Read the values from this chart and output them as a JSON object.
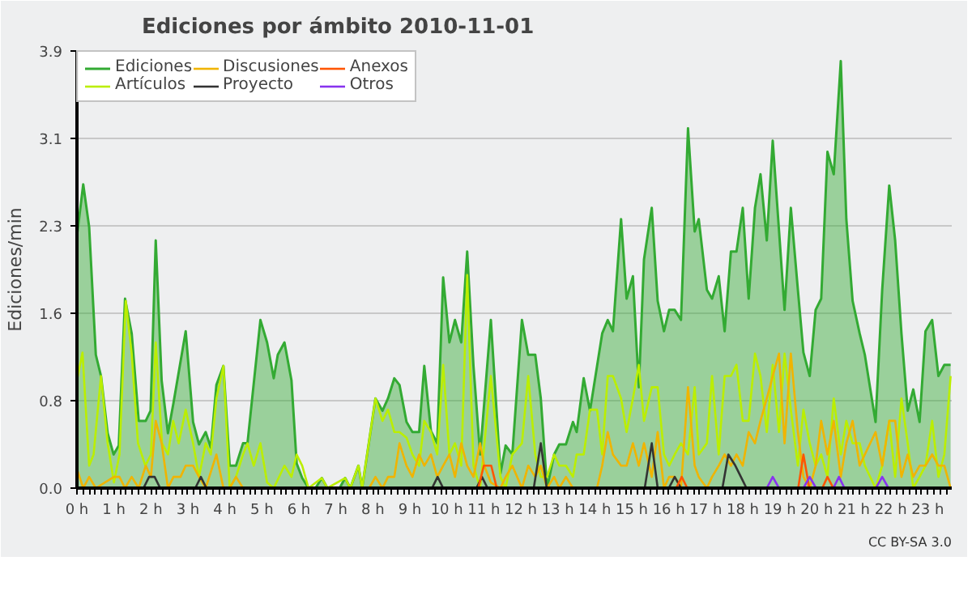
{
  "chart_data": {
    "type": "area",
    "title": "Ediciones por ámbito  2010-11-01",
    "ylabel": "Ediciones/min",
    "xlim": [
      0,
      23.65
    ],
    "ylim": [
      0,
      3.9
    ],
    "xticks": [
      {
        "value": 0,
        "label": "0 h"
      },
      {
        "value": 1,
        "label": "1 h"
      },
      {
        "value": 2,
        "label": "2 h"
      },
      {
        "value": 3,
        "label": "3 h"
      },
      {
        "value": 4,
        "label": "4 h"
      },
      {
        "value": 5,
        "label": "5 h"
      },
      {
        "value": 6,
        "label": "6 h"
      },
      {
        "value": 7,
        "label": "7 h"
      },
      {
        "value": 8,
        "label": "8 h"
      },
      {
        "value": 9,
        "label": "9 h"
      },
      {
        "value": 10,
        "label": "10 h"
      },
      {
        "value": 11,
        "label": "11 h"
      },
      {
        "value": 12,
        "label": "12 h"
      },
      {
        "value": 13,
        "label": "13 h"
      },
      {
        "value": 14,
        "label": "14 h"
      },
      {
        "value": 15,
        "label": "15 h"
      },
      {
        "value": 16,
        "label": "16 h"
      },
      {
        "value": 17,
        "label": "17 h"
      },
      {
        "value": 18,
        "label": "18 h"
      },
      {
        "value": 19,
        "label": "19 h"
      },
      {
        "value": 20,
        "label": "20 h"
      },
      {
        "value": 21,
        "label": "21 h"
      },
      {
        "value": 22,
        "label": "22 h"
      },
      {
        "value": 23,
        "label": "23 h"
      }
    ],
    "yticks": [
      {
        "value": 0,
        "label": "0.0"
      },
      {
        "value": 0.78,
        "label": "0.8"
      },
      {
        "value": 1.56,
        "label": "1.6"
      },
      {
        "value": 2.34,
        "label": "2.3"
      },
      {
        "value": 3.12,
        "label": "3.1"
      },
      3.9
    ],
    "grid": "y",
    "legend": "top left",
    "annotations": [
      "CC BY-SA 3.0"
    ],
    "series": [
      {
        "name": "Ediciones",
        "color": "#33aa33",
        "x": [
          0,
          0.17,
          0.33,
          0.51,
          0.65,
          0.83,
          0.99,
          1.13,
          1.3,
          1.48,
          1.67,
          1.86,
          1.99,
          2.13,
          2.29,
          2.46,
          2.61,
          2.94,
          3.14,
          3.3,
          3.48,
          3.62,
          3.77,
          3.96,
          4.13,
          4.3,
          4.49,
          4.61,
          4.96,
          5.14,
          5.32,
          5.43,
          5.61,
          5.8,
          5.94,
          6.09,
          6.26,
          6.45,
          6.62,
          6.77,
          7.1,
          7.25,
          7.39,
          7.61,
          7.71,
          8.07,
          8.26,
          8.41,
          8.58,
          8.72,
          8.91,
          9.07,
          9.25,
          9.39,
          9.57,
          9.74,
          9.9,
          10.07,
          10.22,
          10.39,
          10.55,
          10.72,
          10.9,
          11.19,
          11.45,
          11.59,
          11.77,
          12.03,
          12.2,
          12.39,
          12.54,
          12.71,
          12.9,
          13.04,
          13.22,
          13.41,
          13.51,
          13.7,
          13.87,
          14.2,
          14.35,
          14.49,
          14.71,
          14.86,
          15.03,
          15.19,
          15.33,
          15.54,
          15.7,
          15.87,
          16.01,
          16.16,
          16.33,
          16.52,
          16.7,
          16.81,
          17.03,
          17.17,
          17.35,
          17.51,
          17.68,
          17.83,
          18.0,
          18.16,
          18.33,
          18.48,
          18.65,
          18.81,
          19.13,
          19.3,
          19.49,
          19.64,
          19.81,
          19.97,
          20.12,
          20.29,
          20.46,
          20.65,
          20.8,
          20.97,
          21.16,
          21.3,
          21.59,
          21.77,
          21.96,
          22.12,
          22.29,
          22.46,
          22.61,
          22.78,
          22.94,
          23.12,
          23.29,
          23.45,
          23.62
        ],
        "values": [
          2.25,
          2.71,
          2.33,
          1.19,
          1.0,
          0.49,
          0.3,
          0.38,
          1.69,
          1.38,
          0.6,
          0.6,
          0.69,
          2.21,
          0.96,
          0.49,
          0.76,
          1.4,
          0.59,
          0.39,
          0.5,
          0.36,
          0.92,
          1.09,
          0.2,
          0.2,
          0.4,
          0.4,
          1.5,
          1.3,
          0.98,
          1.19,
          1.3,
          0.96,
          0.22,
          0.09,
          0,
          0,
          0.09,
          0,
          0,
          0.09,
          0,
          0.2,
          0,
          0.8,
          0.69,
          0.8,
          0.98,
          0.92,
          0.59,
          0.5,
          0.5,
          1.09,
          0.51,
          0.4,
          1.88,
          1.3,
          1.5,
          1.3,
          2.11,
          1.09,
          0.3,
          1.5,
          0.13,
          0.38,
          0.3,
          1.5,
          1.19,
          1.19,
          0.8,
          0,
          0.3,
          0.39,
          0.39,
          0.59,
          0.5,
          0.98,
          0.69,
          1.38,
          1.5,
          1.4,
          2.4,
          1.69,
          1.89,
          0.9,
          2.04,
          2.5,
          1.67,
          1.4,
          1.59,
          1.59,
          1.5,
          3.21,
          2.29,
          2.4,
          1.77,
          1.69,
          1.89,
          1.4,
          2.11,
          2.11,
          2.5,
          1.69,
          2.5,
          2.8,
          2.21,
          3.1,
          1.59,
          2.5,
          1.77,
          1.21,
          1.0,
          1.59,
          1.69,
          3.0,
          2.8,
          3.81,
          2.4,
          1.67,
          1.38,
          1.19,
          0.59,
          1.77,
          2.7,
          2.21,
          1.38,
          0.69,
          0.88,
          0.59,
          1.4,
          1.5,
          1.0,
          1.1,
          1.1
        ]
      },
      {
        "name": "Artículos",
        "type": "line",
        "color": "#bbee00",
        "x": [
          0,
          0.15,
          0.33,
          0.45,
          0.65,
          0.83,
          1.0,
          1.15,
          1.32,
          1.48,
          1.65,
          1.85,
          2.0,
          2.13,
          2.3,
          2.46,
          2.6,
          2.75,
          2.94,
          3.14,
          3.3,
          3.48,
          3.62,
          3.77,
          3.96,
          4.13,
          4.3,
          4.49,
          4.61,
          4.78,
          4.96,
          5.14,
          5.32,
          5.61,
          5.8,
          5.94,
          6.09,
          6.26,
          6.62,
          6.77,
          7.25,
          7.39,
          7.61,
          7.71,
          8.07,
          8.26,
          8.41,
          8.58,
          8.72,
          8.91,
          9.07,
          9.25,
          9.39,
          9.57,
          9.74,
          9.9,
          10.07,
          10.22,
          10.39,
          10.55,
          10.72,
          10.9,
          11.19,
          11.45,
          11.59,
          11.77,
          12.03,
          12.2,
          12.39,
          12.54,
          12.71,
          12.9,
          13.04,
          13.22,
          13.41,
          13.51,
          13.7,
          13.87,
          14.06,
          14.2,
          14.35,
          14.49,
          14.71,
          14.86,
          15.03,
          15.19,
          15.33,
          15.54,
          15.7,
          15.87,
          16.01,
          16.16,
          16.33,
          16.52,
          16.7,
          16.81,
          17.03,
          17.17,
          17.35,
          17.51,
          17.68,
          17.83,
          18.0,
          18.16,
          18.33,
          18.48,
          18.65,
          18.81,
          18.98,
          19.13,
          19.3,
          19.49,
          19.64,
          19.81,
          19.97,
          20.12,
          20.29,
          20.46,
          20.65,
          20.8,
          20.97,
          21.16,
          21.3,
          21.59,
          21.77,
          21.96,
          22.12,
          22.29,
          22.46,
          22.61,
          22.78,
          22.94,
          23.12,
          23.29,
          23.45,
          23.62
        ],
        "values": [
          0.96,
          1.21,
          0.2,
          0.3,
          1.0,
          0.4,
          0.05,
          0.3,
          1.67,
          1.2,
          0.4,
          0.2,
          0.3,
          1.3,
          0.4,
          0.3,
          0.6,
          0.4,
          0.7,
          0.4,
          0.1,
          0.4,
          0.3,
          0.8,
          1.09,
          0,
          0.1,
          0.3,
          0.4,
          0.2,
          0.4,
          0.05,
          0,
          0.2,
          0.1,
          0.3,
          0.2,
          0,
          0.09,
          0,
          0.09,
          0,
          0.2,
          0,
          0.8,
          0.6,
          0.7,
          0.5,
          0.5,
          0.45,
          0.3,
          0.2,
          0.6,
          0.5,
          0.3,
          1.1,
          0.3,
          0.4,
          0.2,
          1.9,
          0.2,
          0,
          1.0,
          0.1,
          0,
          0.3,
          0.4,
          1.0,
          0.3,
          0.1,
          0.1,
          0.3,
          0.2,
          0.2,
          0.1,
          0.3,
          0.3,
          0.7,
          0.7,
          0.3,
          1.0,
          1.0,
          0.8,
          0.5,
          0.8,
          1.1,
          0.6,
          0.9,
          0.9,
          0.3,
          0.2,
          0.3,
          0.4,
          0.3,
          0.9,
          0.3,
          0.4,
          1.0,
          0.3,
          1.0,
          1.0,
          1.1,
          0.6,
          0.6,
          1.2,
          1.0,
          0.5,
          1.1,
          0.5,
          1.2,
          0.7,
          0.2,
          0.7,
          0.4,
          0.2,
          0.3,
          0.1,
          0.8,
          0.3,
          0.6,
          0.4,
          0.4,
          0.2,
          0,
          0.2,
          0.6,
          0.1,
          0.8,
          0.4,
          0,
          0.1,
          0.2,
          0.6,
          0.1,
          0.3,
          1.0
        ]
      },
      {
        "name": "Discusiones",
        "type": "line",
        "color": "#f0b400",
        "x": [
          0,
          0.17,
          0.33,
          0.51,
          1.0,
          1.15,
          1.3,
          1.48,
          1.67,
          1.86,
          2.0,
          2.13,
          2.29,
          2.46,
          2.61,
          2.8,
          2.94,
          3.14,
          3.3,
          3.48,
          3.77,
          3.96,
          4.13,
          4.3,
          4.49,
          7.9,
          8.07,
          8.26,
          8.41,
          8.58,
          8.72,
          8.91,
          9.07,
          9.25,
          9.39,
          9.57,
          9.74,
          9.9,
          10.07,
          10.22,
          10.39,
          10.55,
          10.72,
          10.9,
          11.01,
          11.19,
          11.45,
          11.59,
          11.77,
          12.03,
          12.2,
          12.39,
          12.54,
          12.71,
          12.9,
          13.04,
          13.22,
          13.41,
          14.06,
          14.2,
          14.35,
          14.49,
          14.71,
          14.86,
          15.03,
          15.19,
          15.33,
          15.54,
          15.7,
          15.87,
          16.01,
          16.16,
          16.33,
          16.52,
          16.7,
          16.81,
          17.03,
          17.17,
          17.35,
          17.51,
          17.68,
          17.83,
          18.0,
          18.16,
          18.33,
          18.48,
          18.65,
          18.81,
          18.98,
          19.13,
          19.3,
          19.49,
          19.64,
          19.81,
          19.97,
          20.12,
          20.29,
          20.46,
          20.65,
          20.8,
          20.97,
          21.16,
          21.3,
          21.59,
          21.77,
          21.96,
          22.12,
          22.29,
          22.46,
          22.61,
          22.78,
          22.94,
          23.12,
          23.29,
          23.45,
          23.62
        ],
        "values": [
          0.17,
          0,
          0.1,
          0,
          0.1,
          0.1,
          0,
          0.1,
          0,
          0.2,
          0.1,
          0.6,
          0.4,
          0,
          0.1,
          0.1,
          0.2,
          0.2,
          0.1,
          0,
          0.3,
          0,
          0,
          0.1,
          0,
          0,
          0.1,
          0,
          0.1,
          0.1,
          0.4,
          0.2,
          0.1,
          0.3,
          0.2,
          0.3,
          0.1,
          0.2,
          0.3,
          0.1,
          0.4,
          0.2,
          0.1,
          0.4,
          0.2,
          0.05,
          0,
          0.1,
          0.2,
          0,
          0.2,
          0.1,
          0.2,
          0,
          0.1,
          0,
          0.1,
          0,
          0,
          0.2,
          0.5,
          0.3,
          0.2,
          0.2,
          0.4,
          0.2,
          0.4,
          0.1,
          0.5,
          0,
          0.1,
          0.1,
          0,
          0.9,
          0.2,
          0.1,
          0,
          0.1,
          0.2,
          0.3,
          0.2,
          0.3,
          0.2,
          0.5,
          0.4,
          0.6,
          0.8,
          1.0,
          1.2,
          0.4,
          1.2,
          0.5,
          0.1,
          0,
          0.2,
          0.6,
          0.3,
          0.6,
          0.1,
          0.4,
          0.6,
          0.2,
          0.3,
          0.5,
          0.2,
          0.6,
          0.6,
          0.1,
          0.3,
          0.1,
          0.2,
          0.2,
          0.3,
          0.2,
          0.2,
          0
        ]
      },
      {
        "name": "Proyecto",
        "type": "line",
        "color": "#333333",
        "x": [
          1.8,
          1.95,
          2.1,
          2.25,
          2.3,
          3.2,
          3.35,
          3.5,
          3.6,
          9.6,
          9.75,
          9.9,
          10.0,
          10.8,
          10.95,
          11.1,
          11.2,
          12.35,
          12.54,
          12.7,
          12.8,
          15.35,
          15.54,
          15.7,
          15.8,
          16.0,
          16.16,
          16.33,
          16.4,
          17.45,
          17.61,
          17.8,
          17.95,
          18.1
        ],
        "values": [
          0,
          0.1,
          0.1,
          0,
          null,
          0,
          0.1,
          0,
          null,
          0,
          0.1,
          0,
          null,
          0,
          0.1,
          0,
          null,
          0,
          0.4,
          0,
          null,
          0,
          0.4,
          0,
          null,
          0,
          0.1,
          0,
          null,
          0,
          0.3,
          0.2,
          0.1,
          0
        ]
      },
      {
        "name": "Anexos",
        "type": "line",
        "color": "#ff5500",
        "x": [
          10.85,
          11.0,
          11.2,
          11.35,
          11.4,
          16.2,
          16.35,
          16.5,
          16.6,
          19.5,
          19.64,
          19.8,
          19.9,
          20.15,
          20.29,
          20.45
        ],
        "values": [
          0,
          0.2,
          0.2,
          0,
          null,
          0,
          0.1,
          0,
          null,
          0,
          0.3,
          0,
          null,
          0,
          0.1,
          0
        ]
      },
      {
        "name": "Otros",
        "type": "line",
        "color": "#8833ee",
        "x": [
          18.65,
          18.81,
          18.98,
          19.0,
          19.64,
          19.81,
          19.98,
          20.0,
          20.45,
          20.6,
          20.75,
          20.8,
          21.6,
          21.77,
          21.94
        ],
        "values": [
          0,
          0.1,
          0,
          null,
          0,
          0.1,
          0,
          null,
          0,
          0.1,
          0,
          null,
          0,
          0.1,
          0
        ]
      }
    ]
  }
}
